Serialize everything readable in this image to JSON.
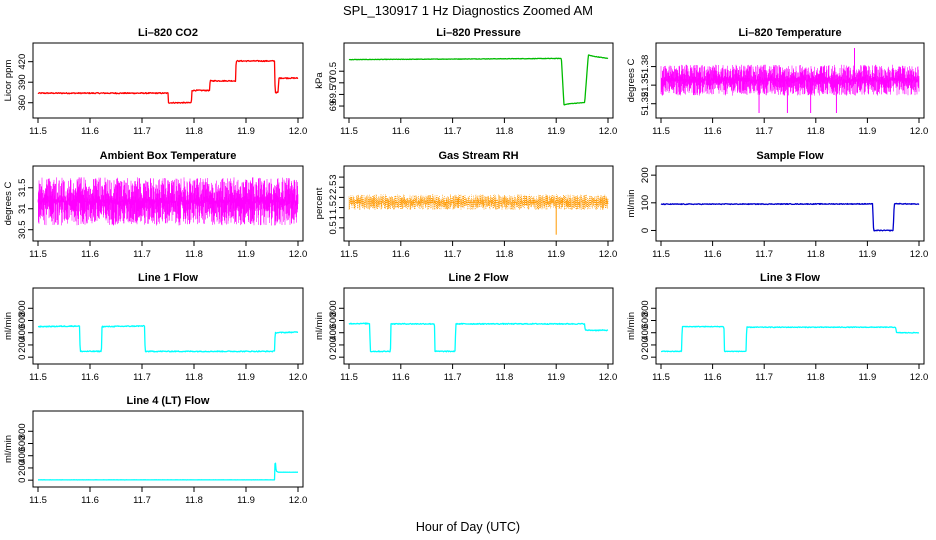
{
  "figure": {
    "title": "SPL_130917  1 Hz Diagnostics Zoomed AM",
    "xlabel": "Hour of Day (UTC)"
  },
  "chart_data": [
    {
      "type": "line",
      "title": "Li–820 CO2",
      "ylabel": "Licor ppm",
      "color": "#ff0000",
      "xlim": [
        11.5,
        12.0
      ],
      "ylim": [
        345,
        440
      ],
      "yticks": [
        360,
        390,
        420
      ],
      "xticks": [
        11.5,
        11.6,
        11.7,
        11.8,
        11.9,
        12.0
      ],
      "series": [
        {
          "x": [
            11.5,
            11.75,
            11.751,
            11.795,
            11.796,
            11.83,
            11.831,
            11.88,
            11.881,
            11.955,
            11.956,
            11.962,
            11.963,
            12.0
          ],
          "y": [
            374,
            374,
            360,
            360,
            378,
            378,
            392,
            392,
            421,
            421,
            375,
            375,
            396,
            396
          ],
          "noise": 0.8
        }
      ]
    },
    {
      "type": "line",
      "title": "Li–820 Pressure",
      "ylabel": "kPa",
      "color": "#00bb00",
      "xlim": [
        11.5,
        12.0
      ],
      "ylim": [
        68.7,
        71.5
      ],
      "yticks": [
        69.0,
        69.5,
        70.0,
        70.5
      ],
      "xticks": [
        11.5,
        11.6,
        11.7,
        11.8,
        11.9,
        12.0
      ],
      "series": [
        {
          "x": [
            11.5,
            11.91,
            11.915,
            11.925,
            11.955,
            11.962,
            11.97,
            12.0
          ],
          "y": [
            71.0,
            71.05,
            69.05,
            69.1,
            69.15,
            71.2,
            71.15,
            71.05
          ],
          "noise": 0.01
        }
      ]
    },
    {
      "type": "line",
      "title": "Li–820 Temperature",
      "ylabel": "degrees C",
      "color": "#ff00ff",
      "xlim": [
        11.5,
        12.0
      ],
      "ylim": [
        51.305,
        51.41
      ],
      "yticks": [
        51.32,
        51.35,
        51.38
      ],
      "xticks": [
        11.5,
        11.6,
        11.7,
        11.8,
        11.9,
        12.0
      ],
      "series": [
        {
          "x": [
            11.5,
            12.0
          ],
          "y": [
            51.35,
            51.35
          ],
          "band": [
            51.333,
            51.383
          ],
          "spikes_down": [
            11.69,
            11.745,
            11.79,
            11.84
          ],
          "spike_up": 11.875
        }
      ]
    },
    {
      "type": "line",
      "title": "Ambient Box Temperature",
      "ylabel": "degrees C",
      "color": "#ff00ff",
      "xlim": [
        11.5,
        12.0
      ],
      "ylim": [
        30.35,
        31.9
      ],
      "yticks": [
        30.5,
        31.0,
        31.5
      ],
      "xticks": [
        11.5,
        11.6,
        11.7,
        11.8,
        11.9,
        12.0
      ],
      "series": [
        {
          "x": [
            11.5,
            12.0
          ],
          "y": [
            31.1,
            31.1
          ],
          "band": [
            30.6,
            31.75
          ]
        }
      ]
    },
    {
      "type": "scatter",
      "title": "Gas Stream RH",
      "ylabel": "percent",
      "color": "#ff9900",
      "xlim": [
        11.5,
        12.0
      ],
      "ylim": [
        0.1,
        3.3
      ],
      "yticks": [
        0.5,
        1.0,
        1.5,
        2.0,
        2.5,
        3.0
      ],
      "xticks": [
        11.5,
        11.6,
        11.7,
        11.8,
        11.9,
        12.0
      ],
      "series": [
        {
          "x": [
            11.5,
            12.0
          ],
          "y": [
            1.8,
            1.8
          ],
          "band": [
            1.4,
            2.15
          ],
          "spike_down": 11.9
        }
      ]
    },
    {
      "type": "line",
      "title": "Sample Flow",
      "ylabel": "ml/min",
      "color": "#0000cc",
      "xlim": [
        11.5,
        12.0
      ],
      "ylim": [
        -20,
        215
      ],
      "yticks": [
        0,
        100,
        200
      ],
      "xticks": [
        11.5,
        11.6,
        11.7,
        11.8,
        11.9,
        12.0
      ],
      "series": [
        {
          "x": [
            11.5,
            11.91,
            11.912,
            11.95,
            11.952,
            12.0
          ],
          "y": [
            95,
            96,
            0,
            0,
            97,
            95
          ],
          "noise": 1.5
        }
      ]
    },
    {
      "type": "line",
      "title": "Line 1 Flow",
      "ylabel": "ml/min",
      "color": "#00ffff",
      "xlim": [
        11.5,
        12.0
      ],
      "ylim": [
        -30,
        1050
      ],
      "yticks": [
        0,
        200,
        400,
        600,
        800
      ],
      "xticks": [
        11.5,
        11.6,
        11.7,
        11.8,
        11.9,
        12.0
      ],
      "series": [
        {
          "x": [
            11.5,
            11.58,
            11.581,
            11.622,
            11.623,
            11.705,
            11.706,
            11.955,
            11.956,
            12.0
          ],
          "y": [
            500,
            510,
            95,
            95,
            500,
            510,
            95,
            95,
            400,
            410
          ],
          "noise": 8
        }
      ]
    },
    {
      "type": "line",
      "title": "Line 2 Flow",
      "ylabel": "ml/min",
      "color": "#00ffff",
      "xlim": [
        11.5,
        12.0
      ],
      "ylim": [
        -30,
        1050
      ],
      "yticks": [
        0,
        200,
        400,
        600,
        800
      ],
      "xticks": [
        11.5,
        11.6,
        11.7,
        11.8,
        11.9,
        12.0
      ],
      "series": [
        {
          "x": [
            11.5,
            11.54,
            11.541,
            11.58,
            11.581,
            11.665,
            11.666,
            11.705,
            11.706,
            11.955,
            11.956,
            12.0
          ],
          "y": [
            550,
            550,
            95,
            95,
            545,
            545,
            95,
            95,
            545,
            545,
            440,
            440
          ],
          "noise": 8
        }
      ]
    },
    {
      "type": "line",
      "title": "Line 3 Flow",
      "ylabel": "ml/min",
      "color": "#00ffff",
      "xlim": [
        11.5,
        12.0
      ],
      "ylim": [
        -30,
        1050
      ],
      "yticks": [
        0,
        200,
        400,
        600,
        800
      ],
      "xticks": [
        11.5,
        11.6,
        11.7,
        11.8,
        11.9,
        12.0
      ],
      "series": [
        {
          "x": [
            11.5,
            11.54,
            11.541,
            11.622,
            11.623,
            11.665,
            11.666,
            11.955,
            11.956,
            12.0
          ],
          "y": [
            95,
            95,
            500,
            500,
            95,
            95,
            490,
            490,
            400,
            400
          ],
          "noise": 6
        }
      ]
    },
    {
      "type": "line",
      "title": "Line 4 (LT) Flow",
      "ylabel": "ml/min",
      "color": "#00ffff",
      "xlim": [
        11.5,
        12.0
      ],
      "ylim": [
        -30,
        1050
      ],
      "yticks": [
        0,
        200,
        400,
        600,
        800
      ],
      "xticks": [
        11.5,
        11.6,
        11.7,
        11.8,
        11.9,
        12.0
      ],
      "series": [
        {
          "x": [
            11.5,
            11.955,
            11.956,
            11.958,
            11.962,
            12.0
          ],
          "y": [
            5,
            5,
            350,
            150,
            130,
            130
          ],
          "noise": 1
        }
      ]
    }
  ]
}
